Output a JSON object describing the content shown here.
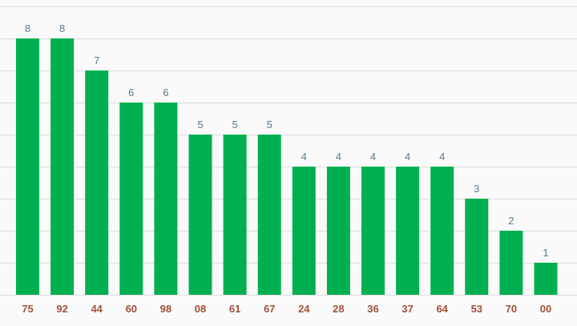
{
  "chart_data": {
    "type": "bar",
    "categories": [
      "75",
      "92",
      "44",
      "60",
      "98",
      "08",
      "61",
      "67",
      "24",
      "28",
      "36",
      "37",
      "64",
      "53",
      "70",
      "00"
    ],
    "values": [
      8,
      8,
      7,
      6,
      6,
      5,
      5,
      5,
      4,
      4,
      4,
      4,
      4,
      3,
      2,
      1
    ],
    "title": "",
    "xlabel": "",
    "ylabel": "",
    "ylim": [
      0,
      9
    ],
    "grid": true,
    "legend": "none",
    "colors": {
      "bar": "#00b050",
      "data_label": "#5a7b8c",
      "category_label": "#a0523a",
      "grid": "#dcdcdc"
    }
  }
}
